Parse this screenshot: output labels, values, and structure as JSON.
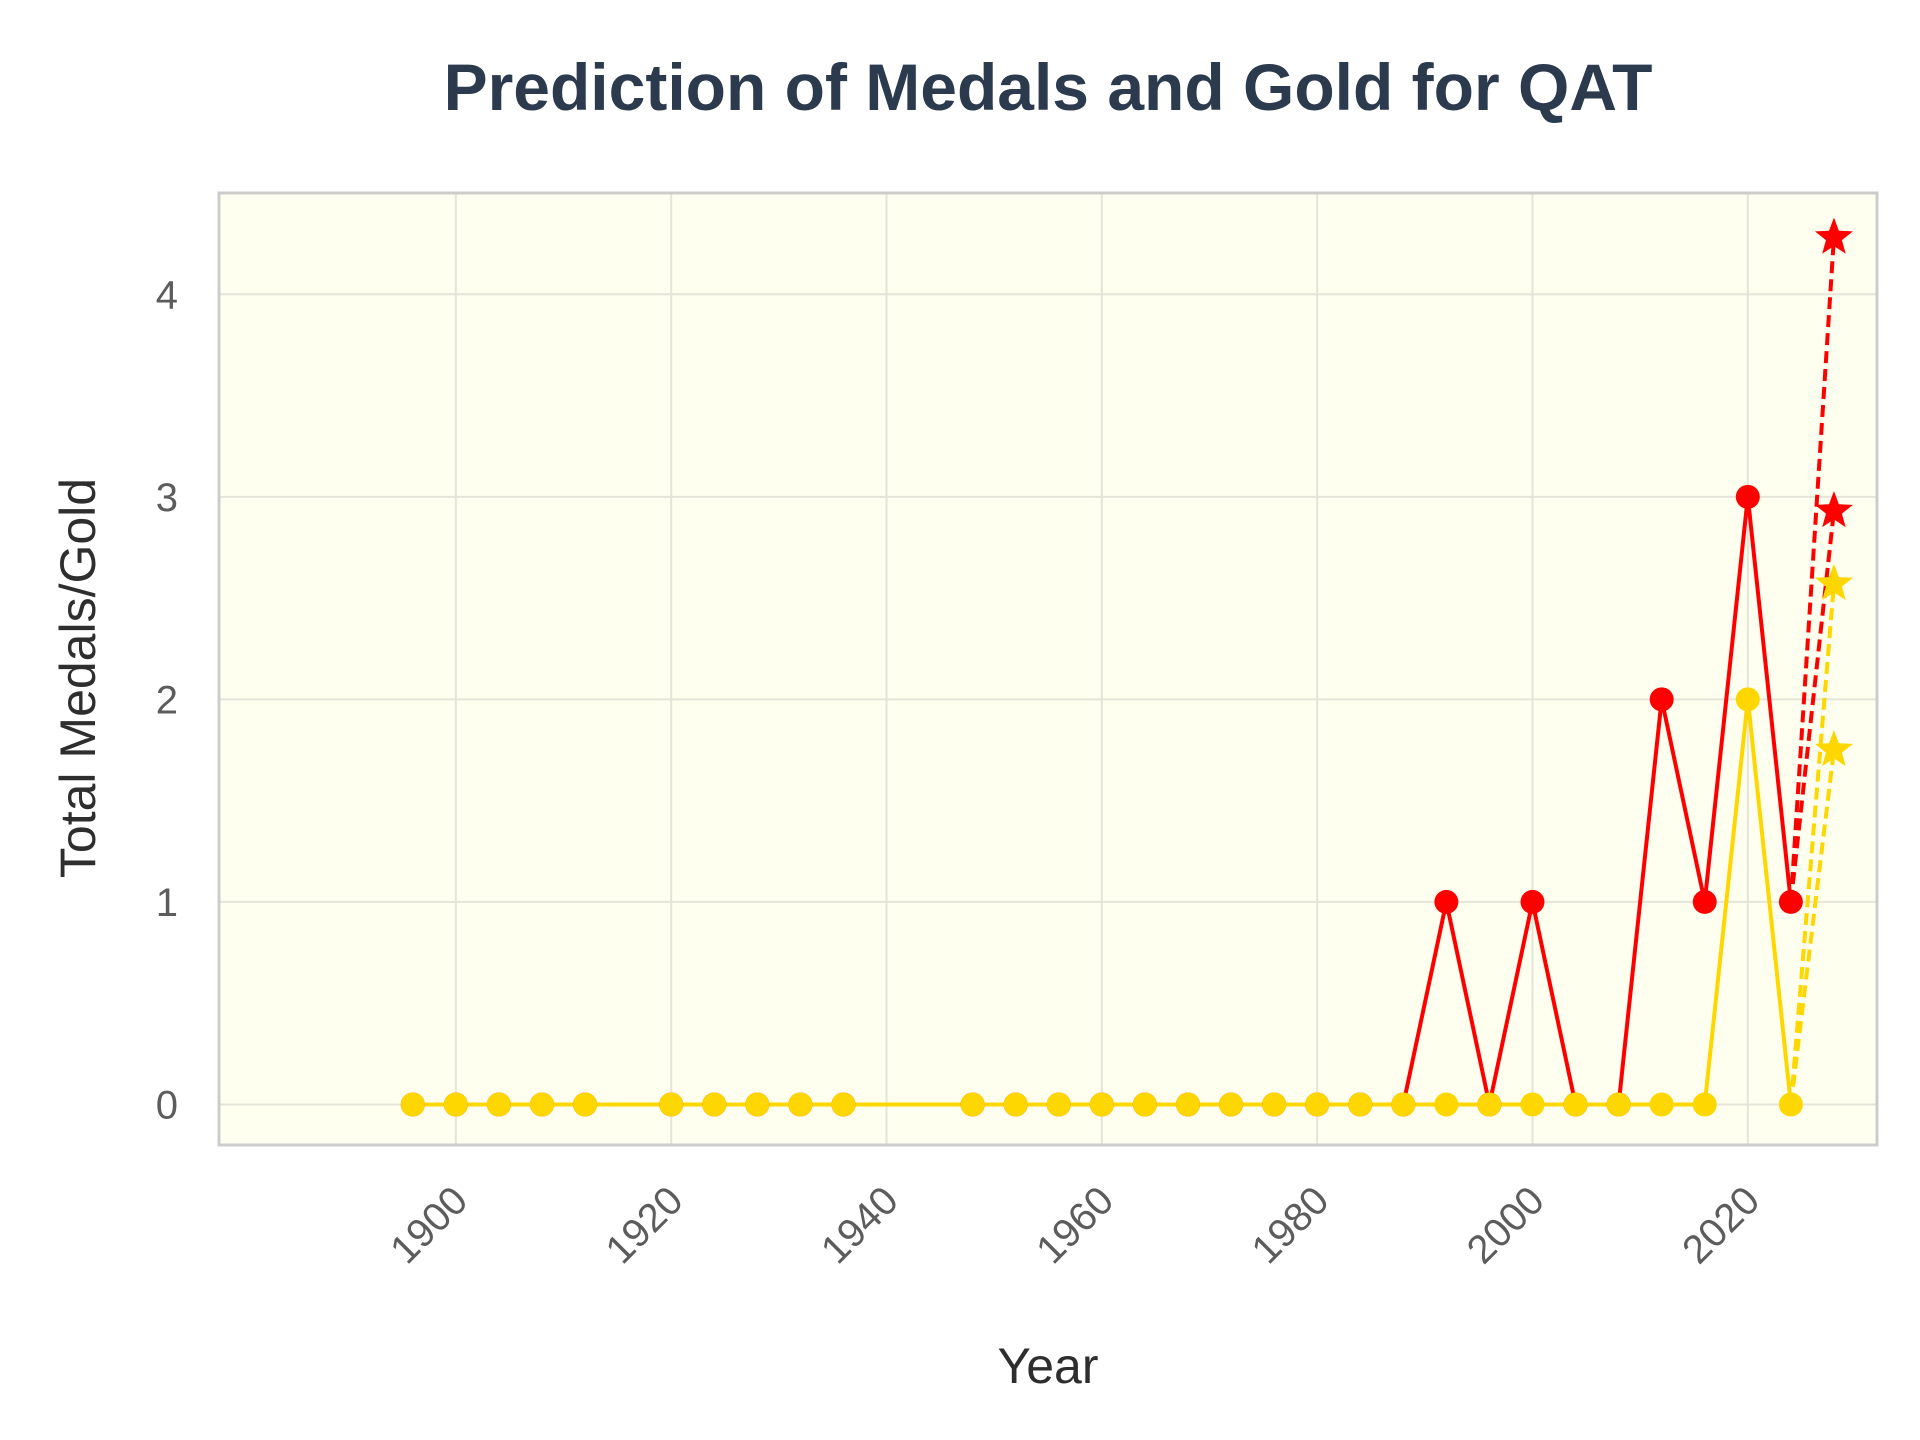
{
  "chart_data": {
    "type": "line",
    "title": "Prediction of Medals and Gold for QAT",
    "xlabel": "Year",
    "ylabel": "Total Medals/Gold",
    "xlim": [
      1878,
      2032
    ],
    "ylim": [
      -0.2,
      4.5
    ],
    "xticks": [
      1900,
      1920,
      1940,
      1960,
      1980,
      2000,
      2020
    ],
    "yticks": [
      0,
      1,
      2,
      3,
      4
    ],
    "grid": true,
    "legend": "none",
    "colors": {
      "total": "#ff0000",
      "gold": "#ffd700",
      "plot_background": "#fffff0",
      "frame": "#cccccc",
      "grid": "#e4e4d8"
    },
    "series": [
      {
        "key": "total",
        "x": [
          1896,
          1900,
          1904,
          1908,
          1912,
          1920,
          1924,
          1928,
          1932,
          1936,
          1948,
          1952,
          1956,
          1960,
          1964,
          1968,
          1972,
          1976,
          1980,
          1984,
          1988,
          1992,
          1996,
          2000,
          2004,
          2008,
          2012,
          2016,
          2020,
          2024
        ],
        "y": [
          0,
          0,
          0,
          0,
          0,
          0,
          0,
          0,
          0,
          0,
          0,
          0,
          0,
          0,
          0,
          0,
          0,
          0,
          0,
          0,
          0,
          1,
          0,
          1,
          0,
          0,
          2,
          1,
          3,
          1
        ]
      },
      {
        "key": "gold",
        "x": [
          1896,
          1900,
          1904,
          1908,
          1912,
          1920,
          1924,
          1928,
          1932,
          1936,
          1948,
          1952,
          1956,
          1960,
          1964,
          1968,
          1972,
          1976,
          1980,
          1984,
          1988,
          1992,
          1996,
          2000,
          2004,
          2008,
          2012,
          2016,
          2020,
          2024
        ],
        "y": [
          0,
          0,
          0,
          0,
          0,
          0,
          0,
          0,
          0,
          0,
          0,
          0,
          0,
          0,
          0,
          0,
          0,
          0,
          0,
          0,
          0,
          0,
          0,
          0,
          0,
          0,
          0,
          0,
          2,
          0
        ]
      }
    ],
    "predictions": {
      "x": 2028,
      "from_x": 2024,
      "total": [
        4.28,
        2.93
      ],
      "gold": [
        2.57,
        1.75
      ]
    }
  }
}
